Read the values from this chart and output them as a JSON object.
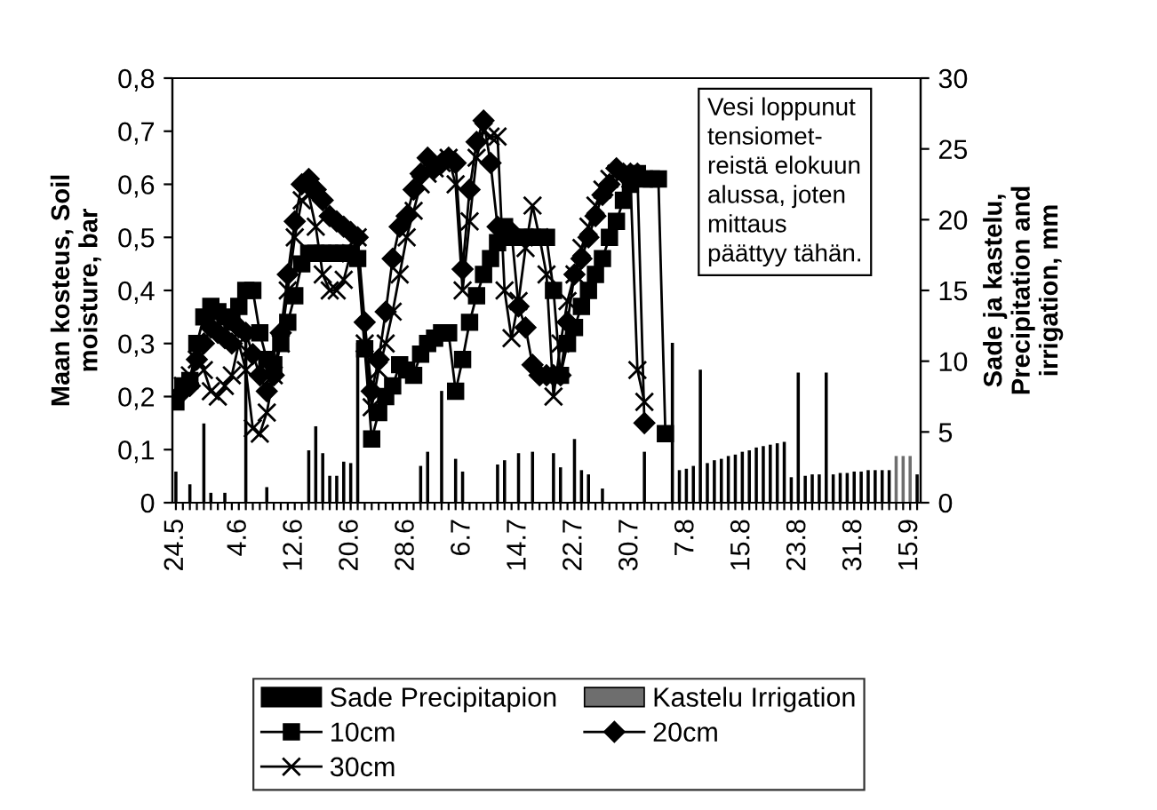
{
  "chart_data": {
    "type": "line",
    "ylabel": "Maan kosteus, Soil\nmoisture, bar",
    "y2label": "Sade ja kastelu,\nPrecipitation and\nirrigation, mm",
    "annotations": [
      "Vesi loppunut\ntensiomet-\nreistä elokuun\nalussa, joten\nmittaus\npäättyy tähän."
    ],
    "categories": [
      "24.5",
      null,
      null,
      null,
      null,
      null,
      null,
      null,
      null,
      "4.6",
      null,
      null,
      null,
      null,
      null,
      null,
      null,
      "12.6",
      null,
      null,
      null,
      null,
      null,
      null,
      null,
      "20.6",
      null,
      null,
      null,
      null,
      null,
      null,
      null,
      "28.6",
      null,
      null,
      null,
      null,
      null,
      null,
      null,
      "6.7",
      null,
      null,
      null,
      null,
      null,
      null,
      null,
      "14.7",
      null,
      null,
      null,
      null,
      null,
      null,
      null,
      "22.7",
      null,
      null,
      null,
      null,
      null,
      null,
      null,
      "30.7",
      null,
      null,
      null,
      null,
      null,
      null,
      null,
      "7.8",
      null,
      null,
      null,
      null,
      null,
      null,
      null,
      "15.8",
      null,
      null,
      null,
      null,
      null,
      null,
      null,
      "23.8",
      null,
      null,
      null,
      null,
      null,
      null,
      null,
      "31.8",
      null,
      null,
      null,
      null,
      null,
      null,
      null,
      "15.9",
      null
    ],
    "series": [
      {
        "name": "Sade Precipitapion",
        "type": "bar",
        "axis": "y2",
        "color": "#000000",
        "values": [
          2.2,
          null,
          1.3,
          null,
          5.6,
          0.7,
          null,
          0.7,
          null,
          null,
          11.3,
          null,
          null,
          1.1,
          null,
          null,
          null,
          null,
          null,
          3.7,
          5.4,
          3.5,
          1.9,
          1.9,
          2.9,
          2.8,
          11.3,
          null,
          null,
          null,
          null,
          null,
          null,
          null,
          null,
          2.6,
          3.6,
          null,
          7.9,
          null,
          3.1,
          2.2,
          null,
          null,
          null,
          null,
          2.7,
          3.0,
          null,
          3.5,
          null,
          3.6,
          null,
          null,
          3.5,
          2.5,
          null,
          4.5,
          2.3,
          2.0,
          null,
          1.0,
          null,
          null,
          null,
          null,
          null,
          3.6,
          null,
          null,
          null,
          11.3,
          2.3,
          2.4,
          2.6,
          9.4,
          2.8,
          3.0,
          3.1,
          3.3,
          3.4,
          3.6,
          3.7,
          3.9,
          4.0,
          4.1,
          4.2,
          4.3,
          1.8,
          9.2,
          1.9,
          2.0,
          2.0,
          9.2,
          2.0,
          2.1,
          2.1,
          2.2,
          2.2,
          2.3,
          2.3,
          2.3,
          2.3,
          null,
          null,
          null,
          2.0
        ]
      },
      {
        "name": "Kastelu Irrigation",
        "type": "bar",
        "axis": "y2",
        "color": "#6e6e6e",
        "values": [
          null,
          null,
          null,
          null,
          null,
          null,
          null,
          null,
          null,
          null,
          null,
          null,
          null,
          null,
          null,
          null,
          null,
          null,
          null,
          null,
          null,
          null,
          null,
          null,
          null,
          null,
          null,
          null,
          null,
          null,
          null,
          null,
          null,
          null,
          null,
          null,
          null,
          null,
          null,
          null,
          null,
          null,
          null,
          null,
          null,
          null,
          null,
          null,
          null,
          null,
          null,
          null,
          null,
          null,
          null,
          null,
          null,
          null,
          null,
          null,
          null,
          null,
          null,
          null,
          null,
          null,
          null,
          null,
          null,
          null,
          null,
          null,
          null,
          null,
          null,
          null,
          null,
          null,
          null,
          null,
          null,
          null,
          null,
          null,
          null,
          null,
          null,
          null,
          null,
          null,
          null,
          null,
          null,
          null,
          null,
          null,
          null,
          null,
          null,
          null,
          null,
          null,
          null,
          3.3,
          3.3,
          3.3,
          null
        ]
      },
      {
        "name": "10cm",
        "marker": "square",
        "color": "#000000",
        "values": [
          0.19,
          0.22,
          0.23,
          0.3,
          0.35,
          0.37,
          0.36,
          0.35,
          0.34,
          0.37,
          0.4,
          0.4,
          0.32,
          0.27,
          0.26,
          0.3,
          0.34,
          0.39,
          0.45,
          0.47,
          0.47,
          0.47,
          0.47,
          0.47,
          0.47,
          0.47,
          0.46,
          0.29,
          0.12,
          0.17,
          0.2,
          0.22,
          0.26,
          0.25,
          0.24,
          0.28,
          0.3,
          0.31,
          0.32,
          0.32,
          0.21,
          0.27,
          0.34,
          0.39,
          0.43,
          0.46,
          0.49,
          0.52,
          0.5,
          0.5,
          0.5,
          0.5,
          0.5,
          0.5,
          0.4,
          0.24,
          0.3,
          0.33,
          0.37,
          0.4,
          0.43,
          0.46,
          0.5,
          0.53,
          0.57,
          0.6,
          0.62,
          0.61,
          0.61,
          0.61,
          0.13,
          null,
          null,
          null,
          null,
          null,
          null,
          null,
          null,
          null,
          null,
          null,
          null,
          null,
          null,
          null,
          null,
          null,
          null,
          null,
          null,
          null,
          null,
          null,
          null,
          null,
          null,
          null,
          null,
          null,
          null,
          null,
          null,
          null,
          null,
          null,
          null
        ]
      },
      {
        "name": "20cm",
        "marker": "diamond",
        "color": "#000000",
        "values": [
          null,
          0.21,
          0.22,
          0.27,
          0.3,
          0.33,
          0.32,
          0.31,
          0.3,
          0.33,
          0.32,
          0.28,
          0.24,
          0.21,
          0.24,
          0.32,
          0.43,
          0.53,
          0.6,
          0.61,
          0.59,
          0.57,
          0.54,
          0.53,
          0.52,
          0.51,
          0.5,
          0.34,
          0.21,
          0.27,
          0.36,
          0.46,
          0.52,
          0.54,
          0.59,
          0.62,
          0.65,
          0.63,
          0.64,
          0.65,
          0.64,
          0.44,
          0.59,
          0.68,
          0.72,
          0.64,
          0.52,
          0.51,
          0.51,
          0.37,
          0.33,
          0.26,
          0.24,
          0.24,
          0.24,
          0.24,
          0.34,
          0.43,
          0.46,
          0.5,
          0.54,
          0.58,
          0.6,
          0.63,
          0.62,
          0.62,
          0.62,
          0.15,
          null,
          null,
          null,
          null,
          null,
          null,
          null,
          null,
          null,
          null,
          null,
          null,
          null,
          null,
          null,
          null,
          null,
          null,
          null,
          null,
          null,
          null,
          null,
          null,
          null,
          null,
          null,
          null,
          null,
          null,
          null,
          null,
          null,
          null,
          null,
          null,
          null,
          null,
          null
        ]
      },
      {
        "name": "30cm",
        "marker": "cross",
        "color": "#000000",
        "values": [
          null,
          0.22,
          0.24,
          0.27,
          0.25,
          0.21,
          0.2,
          0.22,
          0.24,
          0.3,
          0.25,
          0.14,
          0.13,
          0.17,
          0.24,
          0.3,
          0.4,
          0.5,
          0.57,
          0.58,
          0.52,
          0.43,
          0.4,
          0.4,
          0.42,
          0.47,
          0.5,
          0.3,
          0.18,
          0.25,
          0.3,
          0.36,
          0.43,
          0.5,
          0.55,
          0.6,
          0.62,
          0.63,
          0.64,
          0.65,
          0.6,
          0.4,
          0.53,
          0.65,
          0.7,
          0.69,
          0.69,
          0.4,
          0.31,
          0.38,
          0.48,
          0.56,
          0.5,
          0.43,
          0.2,
          0.3,
          0.38,
          0.43,
          0.48,
          0.52,
          0.56,
          0.59,
          0.61,
          0.62,
          0.62,
          0.61,
          0.25,
          0.19,
          null,
          null,
          null,
          null,
          null,
          null,
          null,
          null,
          null,
          null,
          null,
          null,
          null,
          null,
          null,
          null,
          null,
          null,
          null,
          null,
          null,
          null,
          null,
          null,
          null,
          null,
          null,
          null,
          null,
          null,
          null,
          null,
          null,
          null,
          null,
          null,
          null,
          null,
          null
        ]
      }
    ],
    "ylim": [
      0,
      0.8
    ],
    "yticks": [
      {
        "value": 0,
        "label": "0"
      },
      {
        "value": 0.1,
        "label": "0,1"
      },
      {
        "value": 0.2,
        "label": "0,2"
      },
      {
        "value": 0.3,
        "label": "0,3"
      },
      {
        "value": 0.4,
        "label": "0,4"
      },
      {
        "value": 0.5,
        "label": "0,5"
      },
      {
        "value": 0.6,
        "label": "0,6"
      },
      {
        "value": 0.7,
        "label": "0,7"
      },
      {
        "value": 0.8,
        "label": "0,8"
      }
    ],
    "y2lim": [
      0,
      30
    ],
    "y2ticks": [
      0,
      5,
      10,
      15,
      20,
      25,
      30
    ],
    "legend": "bottom",
    "grid": false
  }
}
